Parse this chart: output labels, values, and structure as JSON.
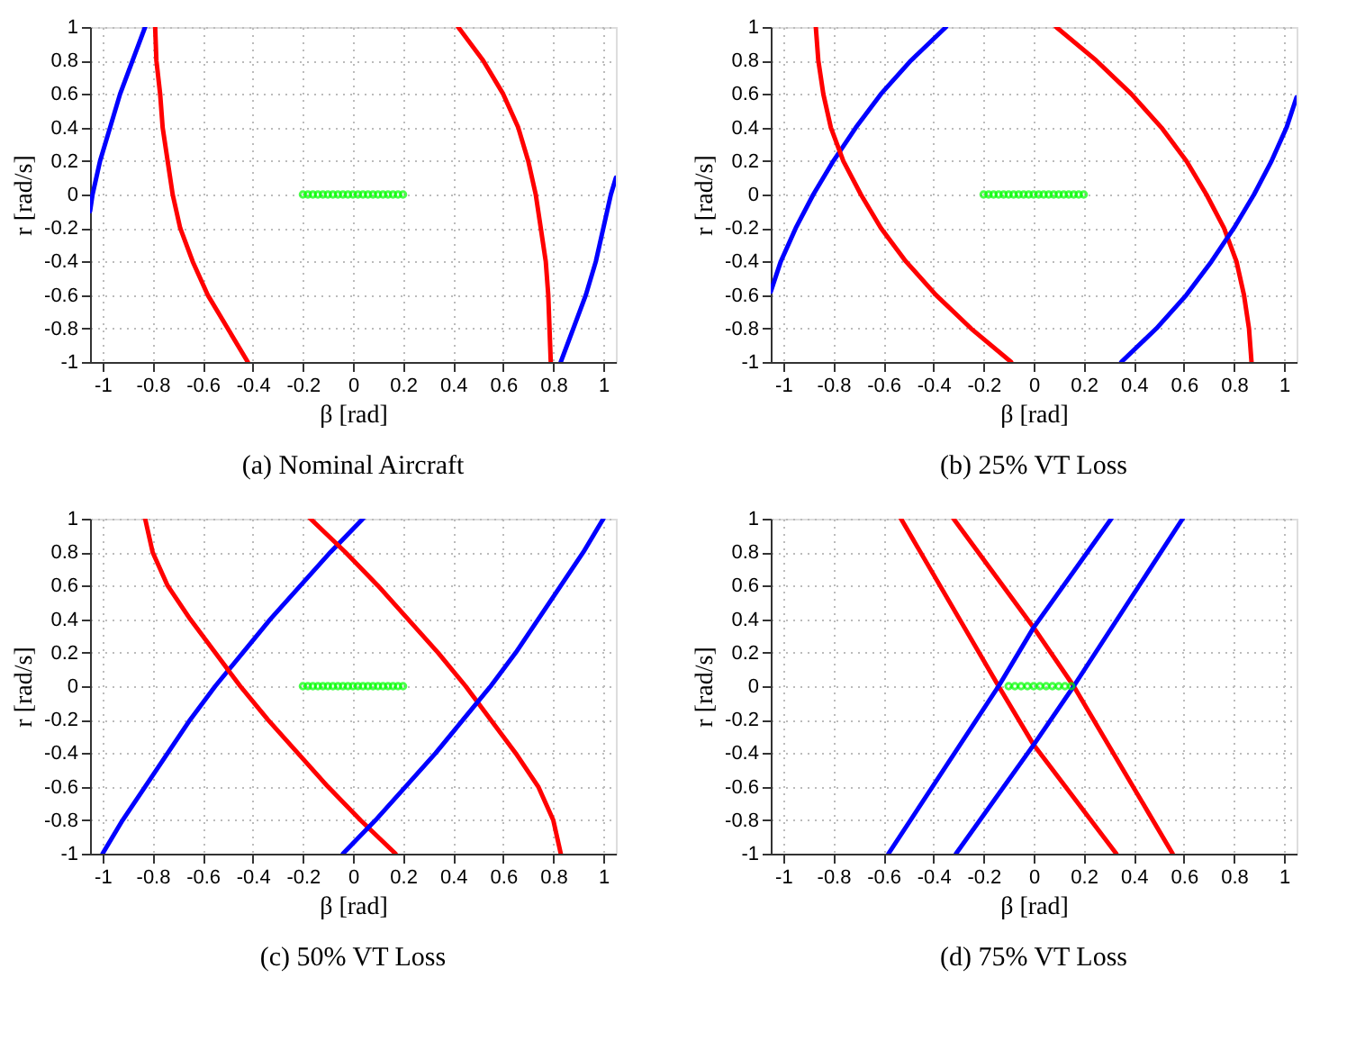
{
  "chart_data": [
    {
      "type": "line",
      "title": "(a) Nominal Aircraft",
      "xlabel": "β [rad]",
      "ylabel": "r [rad/s]",
      "xlim": [
        -1.05,
        1.05
      ],
      "ylim": [
        -1,
        1
      ],
      "xticks": [
        -1,
        -0.8,
        -0.6,
        -0.4,
        -0.2,
        0,
        0.2,
        0.4,
        0.6,
        0.8,
        1
      ],
      "yticks": [
        -1,
        -0.8,
        -0.6,
        -0.4,
        -0.2,
        0,
        0.2,
        0.4,
        0.6,
        0.8,
        1
      ],
      "grid": true,
      "series": [
        {
          "type": "line",
          "color": "#0000ff",
          "x": [
            -1.05,
            -1.04,
            -1.01,
            -0.97,
            -0.93,
            -0.88,
            -0.83
          ],
          "values": [
            -0.1,
            0,
            0.2,
            0.4,
            0.6,
            0.8,
            1
          ]
        },
        {
          "type": "line",
          "color": "#ff0000",
          "x": [
            -0.79,
            -0.785,
            -0.77,
            -0.76,
            -0.74,
            -0.72,
            -0.69,
            -0.64,
            -0.58,
            -0.5,
            -0.42
          ],
          "values": [
            1,
            0.8,
            0.6,
            0.4,
            0.2,
            0,
            -0.2,
            -0.4,
            -0.6,
            -0.8,
            -1
          ]
        },
        {
          "type": "line",
          "color": "#ff0000",
          "x": [
            0.42,
            0.52,
            0.6,
            0.66,
            0.7,
            0.73,
            0.75,
            0.77,
            0.78,
            0.785,
            0.79
          ],
          "values": [
            1,
            0.8,
            0.6,
            0.4,
            0.2,
            0,
            -0.2,
            -0.4,
            -0.6,
            -0.8,
            -1
          ]
        },
        {
          "type": "line",
          "color": "#0000ff",
          "x": [
            0.83,
            0.88,
            0.93,
            0.97,
            1.0,
            1.03,
            1.05
          ],
          "values": [
            -1,
            -0.8,
            -0.6,
            -0.4,
            -0.2,
            0,
            0.1
          ]
        },
        {
          "type": "scatter",
          "marker": "circle",
          "color": "#00ff00",
          "x": [
            -0.2,
            -0.18,
            -0.16,
            -0.14,
            -0.12,
            -0.1,
            -0.08,
            -0.06,
            -0.04,
            -0.02,
            0,
            0.02,
            0.04,
            0.06,
            0.08,
            0.1,
            0.12,
            0.14,
            0.16,
            0.18,
            0.2
          ],
          "values": [
            0,
            0,
            0,
            0,
            0,
            0,
            0,
            0,
            0,
            0,
            0,
            0,
            0,
            0,
            0,
            0,
            0,
            0,
            0,
            0,
            0
          ]
        }
      ]
    },
    {
      "type": "line",
      "title": "(b) 25% VT Loss",
      "xlabel": "β [rad]",
      "ylabel": "r [rad/s]",
      "xlim": [
        -1.05,
        1.05
      ],
      "ylim": [
        -1,
        1
      ],
      "xticks": [
        -1,
        -0.8,
        -0.6,
        -0.4,
        -0.2,
        0,
        0.2,
        0.4,
        0.6,
        0.8,
        1
      ],
      "yticks": [
        -1,
        -0.8,
        -0.6,
        -0.4,
        -0.2,
        0,
        0.2,
        0.4,
        0.6,
        0.8,
        1
      ],
      "grid": true,
      "series": [
        {
          "type": "line",
          "color": "#0000ff",
          "x": [
            -1.05,
            -1.01,
            -0.95,
            -0.88,
            -0.8,
            -0.71,
            -0.61,
            -0.49,
            -0.35
          ],
          "values": [
            -0.58,
            -0.4,
            -0.2,
            0,
            0.2,
            0.4,
            0.6,
            0.8,
            1
          ]
        },
        {
          "type": "line",
          "color": "#ff0000",
          "x": [
            -0.87,
            -0.86,
            -0.84,
            -0.81,
            -0.76,
            -0.69,
            -0.61,
            -0.51,
            -0.39,
            -0.25,
            -0.09
          ],
          "values": [
            1,
            0.8,
            0.6,
            0.4,
            0.2,
            0,
            -0.2,
            -0.4,
            -0.6,
            -0.8,
            -1
          ]
        },
        {
          "type": "line",
          "color": "#ff0000",
          "x": [
            0.09,
            0.25,
            0.39,
            0.51,
            0.61,
            0.69,
            0.76,
            0.81,
            0.84,
            0.86,
            0.87
          ],
          "values": [
            1,
            0.8,
            0.6,
            0.4,
            0.2,
            0,
            -0.2,
            -0.4,
            -0.6,
            -0.8,
            -1
          ]
        },
        {
          "type": "line",
          "color": "#0000ff",
          "x": [
            0.35,
            0.49,
            0.61,
            0.71,
            0.8,
            0.88,
            0.95,
            1.01,
            1.05
          ],
          "values": [
            -1,
            -0.8,
            -0.6,
            -0.4,
            -0.2,
            0,
            0.2,
            0.4,
            0.58
          ]
        },
        {
          "type": "scatter",
          "marker": "circle",
          "color": "#00ff00",
          "x": [
            -0.2,
            -0.18,
            -0.16,
            -0.14,
            -0.12,
            -0.1,
            -0.08,
            -0.06,
            -0.04,
            -0.02,
            0,
            0.02,
            0.04,
            0.06,
            0.08,
            0.1,
            0.12,
            0.14,
            0.16,
            0.18,
            0.2
          ],
          "values": [
            0,
            0,
            0,
            0,
            0,
            0,
            0,
            0,
            0,
            0,
            0,
            0,
            0,
            0,
            0,
            0,
            0,
            0,
            0,
            0,
            0
          ]
        }
      ]
    },
    {
      "type": "line",
      "title": "(c) 50% VT Loss",
      "xlabel": "β [rad]",
      "ylabel": "r [rad/s]",
      "xlim": [
        -1.05,
        1.05
      ],
      "ylim": [
        -1,
        1
      ],
      "xticks": [
        -1,
        -0.8,
        -0.6,
        -0.4,
        -0.2,
        0,
        0.2,
        0.4,
        0.6,
        0.8,
        1
      ],
      "yticks": [
        -1,
        -0.8,
        -0.6,
        -0.4,
        -0.2,
        0,
        0.2,
        0.4,
        0.6,
        0.8,
        1
      ],
      "grid": true,
      "series": [
        {
          "type": "line",
          "color": "#0000ff",
          "x": [
            -1.0,
            -0.92,
            -0.83,
            -0.74,
            -0.65,
            -0.55,
            -0.44,
            -0.33,
            -0.21,
            -0.09,
            0.04
          ],
          "values": [
            -1,
            -0.8,
            -0.6,
            -0.4,
            -0.2,
            0,
            0.2,
            0.4,
            0.6,
            0.8,
            1
          ]
        },
        {
          "type": "line",
          "color": "#ff0000",
          "x": [
            -0.83,
            -0.8,
            -0.74,
            -0.65,
            -0.55,
            -0.45,
            -0.34,
            -0.22,
            -0.1,
            0.03,
            0.17
          ],
          "values": [
            1,
            0.8,
            0.6,
            0.4,
            0.2,
            0,
            -0.2,
            -0.4,
            -0.6,
            -0.8,
            -1
          ]
        },
        {
          "type": "line",
          "color": "#ff0000",
          "x": [
            -0.17,
            -0.03,
            0.1,
            0.22,
            0.34,
            0.45,
            0.55,
            0.65,
            0.74,
            0.8,
            0.83
          ],
          "values": [
            1,
            0.8,
            0.6,
            0.4,
            0.2,
            0,
            -0.2,
            -0.4,
            -0.6,
            -0.8,
            -1
          ]
        },
        {
          "type": "line",
          "color": "#0000ff",
          "x": [
            -0.04,
            0.09,
            0.21,
            0.33,
            0.44,
            0.55,
            0.65,
            0.74,
            0.83,
            0.92,
            1.0
          ],
          "values": [
            -1,
            -0.8,
            -0.6,
            -0.4,
            -0.2,
            0,
            0.2,
            0.4,
            0.6,
            0.8,
            1
          ]
        },
        {
          "type": "scatter",
          "marker": "circle",
          "color": "#00ff00",
          "x": [
            -0.2,
            -0.18,
            -0.16,
            -0.14,
            -0.12,
            -0.1,
            -0.08,
            -0.06,
            -0.04,
            -0.02,
            0,
            0.02,
            0.04,
            0.06,
            0.08,
            0.1,
            0.12,
            0.14,
            0.16,
            0.18,
            0.2
          ],
          "values": [
            0,
            0,
            0,
            0,
            0,
            0,
            0,
            0,
            0,
            0,
            0,
            0,
            0,
            0,
            0,
            0,
            0,
            0,
            0,
            0,
            0
          ]
        }
      ]
    },
    {
      "type": "line",
      "title": "(d) 75% VT Loss",
      "xlabel": "β [rad]",
      "ylabel": "r [rad/s]",
      "xlim": [
        -1.05,
        1.05
      ],
      "ylim": [
        -1,
        1
      ],
      "xticks": [
        -1,
        -0.8,
        -0.6,
        -0.4,
        -0.2,
        0,
        0.2,
        0.4,
        0.6,
        0.8,
        1
      ],
      "yticks": [
        -1,
        -0.8,
        -0.6,
        -0.4,
        -0.2,
        0,
        0.2,
        0.4,
        0.6,
        0.8,
        1
      ],
      "grid": true,
      "series": [
        {
          "type": "line",
          "color": "#ff0000",
          "x": [
            -0.53,
            -0.14,
            0.0,
            0.33
          ],
          "values": [
            1,
            0,
            -0.35,
            -1
          ]
        },
        {
          "type": "line",
          "color": "#ff0000",
          "x": [
            -0.32,
            0.0,
            0.16,
            0.555
          ],
          "values": [
            1,
            0.35,
            0,
            -1
          ]
        },
        {
          "type": "line",
          "color": "#0000ff",
          "x": [
            -0.58,
            -0.14,
            0.0,
            0.31
          ],
          "values": [
            -1,
            0,
            0.35,
            1
          ]
        },
        {
          "type": "line",
          "color": "#0000ff",
          "x": [
            -0.31,
            0.0,
            0.16,
            0.595
          ],
          "values": [
            -1,
            -0.35,
            0,
            1
          ]
        },
        {
          "type": "scatter",
          "marker": "circle",
          "color": "#00ff00",
          "x": [
            -0.1,
            -0.075,
            -0.05,
            -0.025,
            0,
            0.025,
            0.05,
            0.075,
            0.1,
            0.125,
            0.15
          ],
          "values": [
            0,
            0,
            0,
            0,
            0,
            0,
            0,
            0,
            0,
            0,
            0
          ]
        }
      ]
    }
  ]
}
